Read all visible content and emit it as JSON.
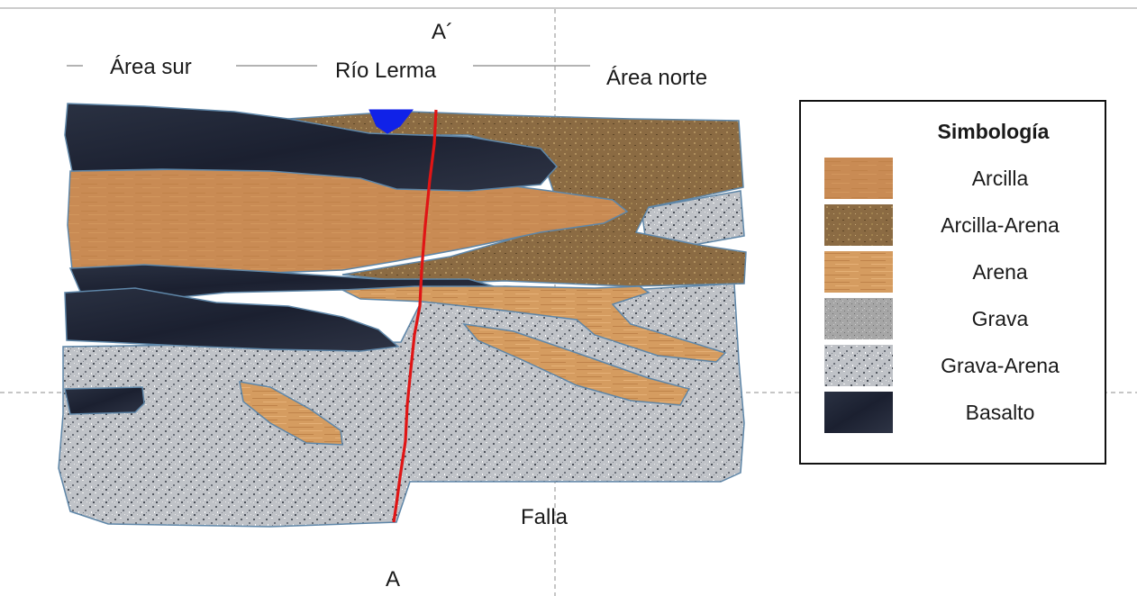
{
  "diagram": {
    "labels": {
      "a_prime": "A´",
      "area_sur": "Área sur",
      "rio_lerma": "Río Lerma",
      "area_norte": "Área norte",
      "falla": "Falla",
      "a": "A"
    },
    "legend": {
      "title": "Simbología",
      "items": [
        {
          "label": "Arcilla",
          "swatch": "arcilla"
        },
        {
          "label": "Arcilla-Arena",
          "swatch": "arcilla-arena"
        },
        {
          "label": "Arena",
          "swatch": "arena"
        },
        {
          "label": "Grava",
          "swatch": "grava"
        },
        {
          "label": "Grava-Arena",
          "swatch": "grava-arena"
        },
        {
          "label": "Basalto",
          "swatch": "basalto"
        }
      ]
    },
    "colors": {
      "arcilla": "#c98a53",
      "arcilla_arena": "#8e7047",
      "arena": "#d49a5e",
      "grava": "#a9a9a9",
      "grava_arena": "#b9bcc1",
      "basalto": "#1f2535",
      "fault": "#e01010",
      "river": "#1020e0"
    }
  }
}
